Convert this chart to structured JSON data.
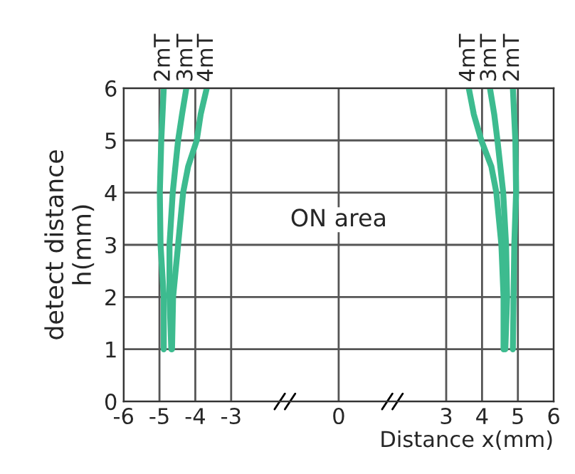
{
  "chart_data": {
    "type": "line",
    "xlabel": "Distance x(mm)",
    "ylabel": "detect distance\nh(mm)",
    "annotations": [
      "ON area"
    ],
    "xlim": [
      -6,
      6
    ],
    "xticks": [
      -6,
      -5,
      -4,
      {
        "value": -3,
        "label": "-3"
      },
      0,
      3,
      4,
      5,
      6
    ],
    "ylim": [
      0,
      6
    ],
    "yticks": [
      0,
      1,
      2,
      3,
      4,
      5,
      6
    ],
    "grid": true,
    "legend": false,
    "marker": "none",
    "line_style": "solid",
    "series": [
      {
        "name": "2mT",
        "color": "#3dbb8f",
        "x": [
          -4.88,
          -4.88,
          -4.97,
          -4.99,
          -4.95,
          -4.88
        ],
        "values": [
          1,
          2,
          3,
          4,
          5,
          6
        ]
      },
      {
        "name": "3mT",
        "color": "#3dbb8f",
        "x": [
          -4.67,
          -4.72,
          -4.72,
          -4.63,
          -4.48,
          -4.37,
          -4.25
        ],
        "values": [
          1,
          2,
          3,
          4,
          5,
          5.5,
          6
        ]
      },
      {
        "name": "4mT",
        "color": "#3dbb8f",
        "x": [
          -4.65,
          -4.62,
          -4.48,
          -4.34,
          -4.2,
          -3.96,
          -3.85,
          -3.68
        ],
        "values": [
          1,
          2,
          3,
          4,
          4.5,
          5,
          5.5,
          6
        ]
      },
      {
        "name": "4mT",
        "color": "#3dbb8f",
        "x": [
          4.6,
          4.6,
          4.54,
          4.4,
          4.26,
          3.98,
          3.77,
          3.63
        ],
        "values": [
          1,
          2,
          3,
          4,
          4.5,
          5,
          5.5,
          6
        ]
      },
      {
        "name": "3mT",
        "color": "#3dbb8f",
        "x": [
          4.65,
          4.7,
          4.67,
          4.59,
          4.43,
          4.34,
          4.22
        ],
        "values": [
          1,
          2,
          3,
          4,
          5,
          5.5,
          6
        ]
      },
      {
        "name": "2mT",
        "color": "#3dbb8f",
        "x": [
          4.86,
          4.88,
          4.9,
          4.95,
          4.93,
          4.86
        ],
        "values": [
          1,
          2,
          3,
          4,
          5,
          6
        ]
      }
    ]
  }
}
